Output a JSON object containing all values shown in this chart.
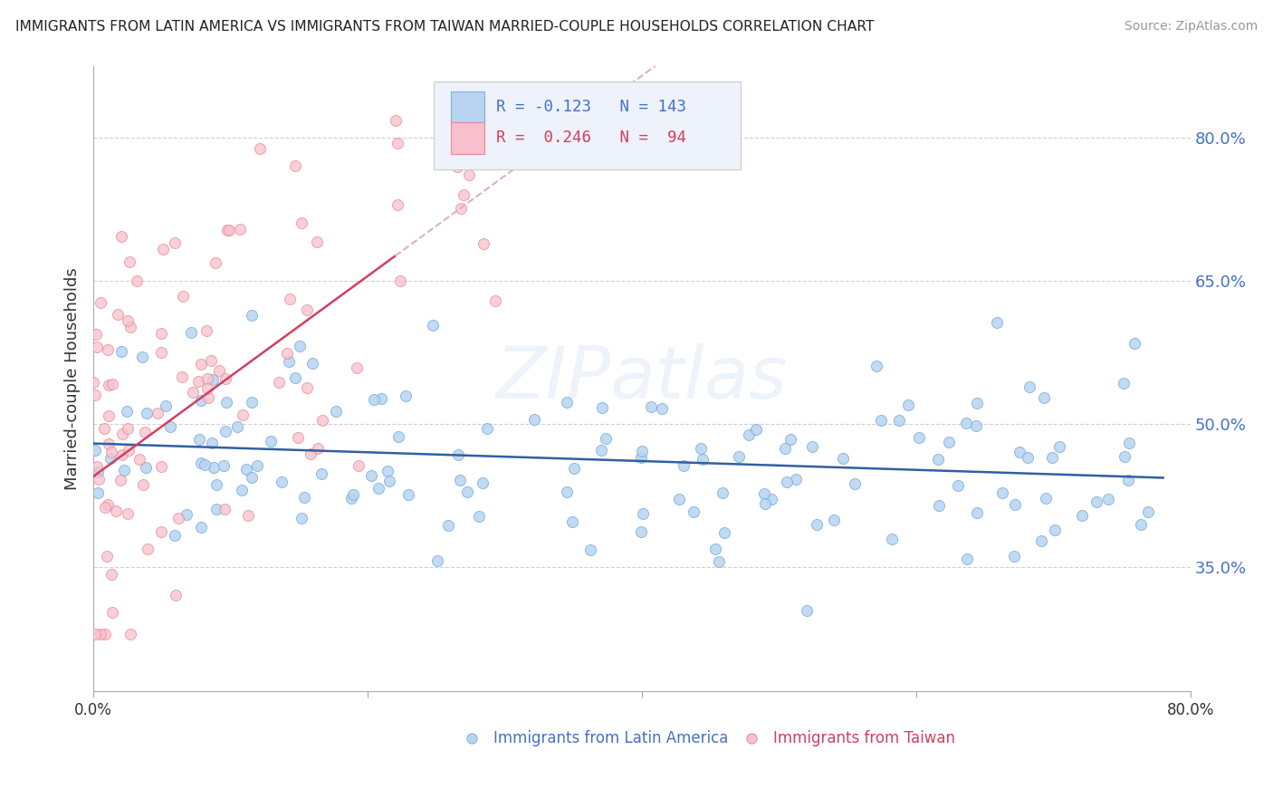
{
  "title": "IMMIGRANTS FROM LATIN AMERICA VS IMMIGRANTS FROM TAIWAN MARRIED-COUPLE HOUSEHOLDS CORRELATION CHART",
  "source": "Source: ZipAtlas.com",
  "ylabel": "Married-couple Households",
  "y_ticks": [
    0.35,
    0.5,
    0.65,
    0.8
  ],
  "y_tick_labels": [
    "35.0%",
    "50.0%",
    "65.0%",
    "80.0%"
  ],
  "xlim": [
    0.0,
    0.8
  ],
  "ylim": [
    0.22,
    0.875
  ],
  "blue_R": -0.123,
  "blue_N": 143,
  "pink_R": 0.246,
  "pink_N": 94,
  "scatter_blue_fill": "#b8d4f0",
  "scatter_blue_edge": "#7ab0de",
  "scatter_pink_fill": "#f8c0cc",
  "scatter_pink_edge": "#e88898",
  "trendline_blue_color": "#3060a0",
  "trendline_pink_solid_color": "#d04060",
  "trendline_pink_dash_color": "#e0b0b8",
  "watermark": "ZIPatlas",
  "grid_color": "#cccccc",
  "background_color": "#ffffff",
  "legend_text_blue": "#4472c4",
  "legend_text_pink": "#d04060",
  "legend_R1": "R = -0.123",
  "legend_N1": "N = 143",
  "legend_R2": "R =  0.246",
  "legend_N2": "N =  94",
  "bottom_legend_blue": "Immigrants from Latin America",
  "bottom_legend_pink": "Immigrants from Taiwan"
}
